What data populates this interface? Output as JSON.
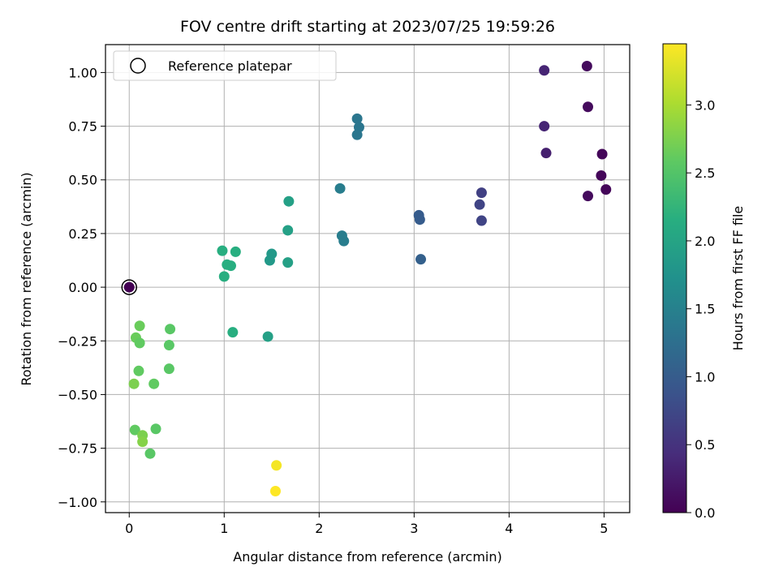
{
  "chart_data": {
    "type": "scatter",
    "title": "FOV centre drift starting at 2023/07/25 19:59:26",
    "xlabel": "Angular distance from reference (arcmin)",
    "ylabel": "Rotation from reference (arcmin)",
    "xlim": [
      -0.25,
      5.27
    ],
    "ylim": [
      -1.05,
      1.13
    ],
    "xticks": [
      0,
      1,
      2,
      3,
      4,
      5
    ],
    "xtick_labels": [
      "0",
      "1",
      "2",
      "3",
      "4",
      "5"
    ],
    "yticks": [
      -1.0,
      -0.75,
      -0.5,
      -0.25,
      0.0,
      0.25,
      0.5,
      0.75,
      1.0
    ],
    "ytick_labels": [
      "−1.00",
      "−0.75",
      "−0.50",
      "−0.25",
      "0.00",
      "0.25",
      "0.50",
      "0.75",
      "1.00"
    ],
    "grid": true,
    "legend": {
      "placement": "upper-left",
      "entries": [
        "Reference platepar"
      ]
    },
    "colorbar": {
      "label": "Hours from first FF file",
      "colormap": "viridis",
      "range": [
        0.0,
        3.45
      ],
      "ticks": [
        0.0,
        0.5,
        1.0,
        1.5,
        2.0,
        2.5,
        3.0
      ],
      "tick_labels": [
        "0.0",
        "0.5",
        "1.0",
        "1.5",
        "2.0",
        "2.5",
        "3.0"
      ]
    },
    "reference_point": {
      "x": 0.0,
      "y": 0.0
    },
    "points": [
      {
        "x": 0.0,
        "y": 0.0,
        "c": 0.0
      },
      {
        "x": 4.82,
        "y": 1.03,
        "c": 0.1
      },
      {
        "x": 4.83,
        "y": 0.84,
        "c": 0.1
      },
      {
        "x": 4.98,
        "y": 0.62,
        "c": 0.05
      },
      {
        "x": 4.97,
        "y": 0.52,
        "c": 0.05
      },
      {
        "x": 5.02,
        "y": 0.455,
        "c": 0.05
      },
      {
        "x": 4.83,
        "y": 0.425,
        "c": 0.1
      },
      {
        "x": 4.37,
        "y": 1.01,
        "c": 0.35
      },
      {
        "x": 4.37,
        "y": 0.75,
        "c": 0.35
      },
      {
        "x": 4.39,
        "y": 0.625,
        "c": 0.3
      },
      {
        "x": 3.71,
        "y": 0.44,
        "c": 0.65
      },
      {
        "x": 3.69,
        "y": 0.385,
        "c": 0.7
      },
      {
        "x": 3.71,
        "y": 0.31,
        "c": 0.7
      },
      {
        "x": 3.05,
        "y": 0.335,
        "c": 1.0
      },
      {
        "x": 3.06,
        "y": 0.315,
        "c": 1.0
      },
      {
        "x": 3.07,
        "y": 0.13,
        "c": 1.05
      },
      {
        "x": 2.4,
        "y": 0.785,
        "c": 1.35
      },
      {
        "x": 2.42,
        "y": 0.745,
        "c": 1.35
      },
      {
        "x": 2.4,
        "y": 0.71,
        "c": 1.35
      },
      {
        "x": 2.22,
        "y": 0.46,
        "c": 1.45
      },
      {
        "x": 2.24,
        "y": 0.24,
        "c": 1.45
      },
      {
        "x": 2.26,
        "y": 0.215,
        "c": 1.45
      },
      {
        "x": 1.68,
        "y": 0.4,
        "c": 1.95
      },
      {
        "x": 1.67,
        "y": 0.265,
        "c": 1.95
      },
      {
        "x": 1.5,
        "y": 0.155,
        "c": 1.85
      },
      {
        "x": 1.48,
        "y": 0.125,
        "c": 1.85
      },
      {
        "x": 1.67,
        "y": 0.115,
        "c": 1.95
      },
      {
        "x": 1.46,
        "y": -0.23,
        "c": 1.95
      },
      {
        "x": 0.98,
        "y": 0.17,
        "c": 2.15
      },
      {
        "x": 1.12,
        "y": 0.165,
        "c": 2.15
      },
      {
        "x": 1.03,
        "y": 0.105,
        "c": 2.15
      },
      {
        "x": 1.07,
        "y": 0.1,
        "c": 2.15
      },
      {
        "x": 1.0,
        "y": 0.05,
        "c": 2.15
      },
      {
        "x": 1.09,
        "y": -0.21,
        "c": 2.15
      },
      {
        "x": 0.11,
        "y": -0.18,
        "c": 2.65
      },
      {
        "x": 0.43,
        "y": -0.195,
        "c": 2.55
      },
      {
        "x": 0.07,
        "y": -0.235,
        "c": 2.65
      },
      {
        "x": 0.11,
        "y": -0.26,
        "c": 2.6
      },
      {
        "x": 0.42,
        "y": -0.27,
        "c": 2.55
      },
      {
        "x": 0.42,
        "y": -0.38,
        "c": 2.55
      },
      {
        "x": 0.1,
        "y": -0.39,
        "c": 2.6
      },
      {
        "x": 0.05,
        "y": -0.45,
        "c": 2.75
      },
      {
        "x": 0.26,
        "y": -0.45,
        "c": 2.6
      },
      {
        "x": 0.06,
        "y": -0.665,
        "c": 2.6
      },
      {
        "x": 0.28,
        "y": -0.66,
        "c": 2.55
      },
      {
        "x": 0.14,
        "y": -0.69,
        "c": 2.75
      },
      {
        "x": 0.14,
        "y": -0.72,
        "c": 2.8
      },
      {
        "x": 0.22,
        "y": -0.775,
        "c": 2.55
      },
      {
        "x": 1.55,
        "y": -0.83,
        "c": 3.4
      },
      {
        "x": 1.54,
        "y": -0.95,
        "c": 3.45
      }
    ]
  }
}
